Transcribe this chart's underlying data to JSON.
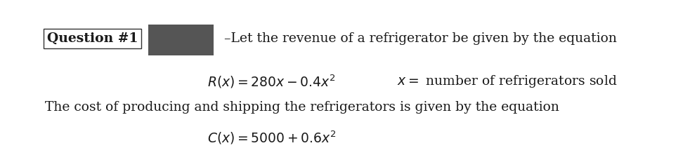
{
  "question_label": "Question #1",
  "redacted_box_color": "#555555",
  "line1_text": "–Let the revenue of a refrigerator be given by the equation",
  "line2_eq": "$R(x)=280x-0.4x^{2}$",
  "line2_note": "$x=$ number of refrigerators sold",
  "line3_text": "The cost of producing and shipping the refrigerators is given by the equation",
  "line4_eq": "$C(x)=5000+0.6x^{2}$",
  "fontsize_main": 13.5,
  "text_color": "#1a1a1a",
  "serif_font": "DejaVu Serif"
}
